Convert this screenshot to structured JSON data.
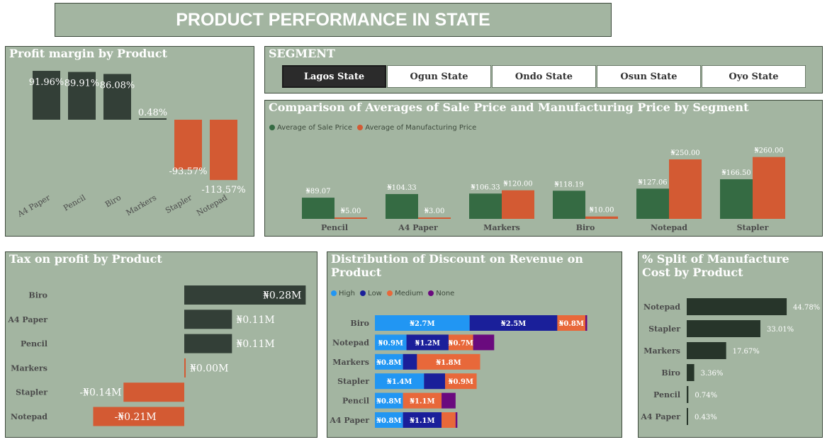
{
  "header": {
    "title": "PRODUCT PERFORMANCE IN STATE"
  },
  "segment": {
    "title": "SEGMENT",
    "buttons": [
      "Lagos State",
      "Ogun State",
      "Ondo State",
      "Osun State",
      "Oyo State"
    ],
    "selected": "Lagos State"
  },
  "colors": {
    "dark": "#333f37",
    "orange": "#d35a33",
    "green": "#356b43",
    "panel": "#a3b5a1"
  },
  "profit_margin": {
    "title": "Profit margin by Product",
    "chart_data": {
      "type": "bar",
      "categories": [
        "A4 Paper",
        "Pencil",
        "Biro",
        "Markers",
        "Stapler",
        "Notepad"
      ],
      "values": [
        91.96,
        89.91,
        86.08,
        0.48,
        -93.57,
        -113.57
      ],
      "labels": [
        "91.96%",
        "89.91%",
        "86.08%",
        "0.48%",
        "-93.57%",
        "-113.57%"
      ]
    }
  },
  "avg_prices": {
    "title": "Comparison of Averages of Sale Price and Manufacturing Price by Segment",
    "chart_data": {
      "type": "bar",
      "categories": [
        "Pencil",
        "A4 Paper",
        "Markers",
        "Biro",
        "Notepad",
        "Stapler"
      ],
      "series": [
        {
          "name": "Average of Sale Price",
          "color": "#356b43",
          "values": [
            89.07,
            104.33,
            106.33,
            118.19,
            127.06,
            166.5
          ],
          "labels": [
            "₦89.07",
            "₦104.33",
            "₦106.33",
            "₦118.19",
            "₦127.06",
            "₦166.50"
          ]
        },
        {
          "name": "Average of Manufacturing Price",
          "color": "#d35a33",
          "values": [
            5.0,
            3.0,
            120.0,
            10.0,
            250.0,
            260.0
          ],
          "labels": [
            "₦5.00",
            "₦3.00",
            "₦120.00",
            "₦10.00",
            "₦250.00",
            "₦260.00"
          ]
        }
      ]
    }
  },
  "tax": {
    "title": "Tax on profit by Product",
    "chart_data": {
      "type": "bar",
      "categories": [
        "Biro",
        "A4 Paper",
        "Pencil",
        "Markers",
        "Stapler",
        "Notepad"
      ],
      "values": [
        0.28,
        0.11,
        0.11,
        0.0,
        -0.14,
        -0.21
      ],
      "labels": [
        "₦0.28M",
        "₦0.11M",
        "₦0.11M",
        "₦0.00M",
        "-₦0.14M",
        "-₦0.21M"
      ]
    }
  },
  "discount": {
    "title": "Distribution of Discount on Revenue on Product",
    "chart_data": {
      "type": "bar",
      "categories": [
        "Biro",
        "Notepad",
        "Markers",
        "Stapler",
        "Pencil",
        "A4 Paper"
      ],
      "series": [
        {
          "name": "High",
          "color": "#2196f3",
          "values": [
            2.7,
            0.9,
            0.8,
            1.4,
            0.8,
            0.8
          ]
        },
        {
          "name": "Low",
          "color": "#1a1f9a",
          "values": [
            2.5,
            1.2,
            0.4,
            0.6,
            0,
            1.1
          ]
        },
        {
          "name": "Medium",
          "color": "#e8683a",
          "values": [
            0.8,
            0.7,
            1.8,
            0.9,
            1.1,
            0.4
          ]
        },
        {
          "name": "None",
          "color": "#6a0a7e",
          "values": [
            0.05,
            0.6,
            0,
            0,
            0.4,
            0.05
          ]
        }
      ],
      "label_threshold": 0.7,
      "label_prefix": "₦",
      "label_suffix": "M"
    }
  },
  "manufacture": {
    "title": "% Split of Manufacture Cost by Product",
    "chart_data": {
      "type": "bar",
      "categories": [
        "Notepad",
        "Stapler",
        "Markers",
        "Biro",
        "Pencil",
        "A4 Paper"
      ],
      "values": [
        44.78,
        33.01,
        17.67,
        3.36,
        0.74,
        0.43
      ],
      "labels": [
        "44.78%",
        "33.01%",
        "17.67%",
        "3.36%",
        "0.74%",
        "0.43%"
      ]
    }
  }
}
